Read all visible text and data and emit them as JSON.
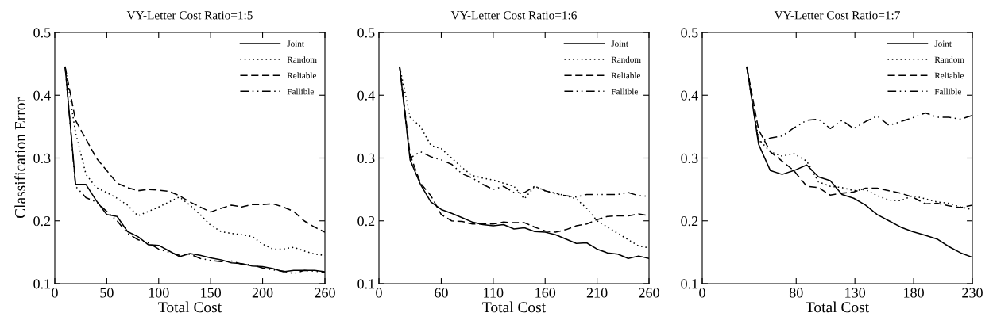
{
  "chart_data": [
    {
      "type": "line",
      "title": "VY-Letter Cost Ratio=1:5",
      "xlabel": "Total Cost",
      "ylabel": "Classification Error",
      "xlim": [
        0,
        260
      ],
      "xticks": [
        0,
        50,
        100,
        150,
        200,
        260
      ],
      "ylim": [
        0.1,
        0.5
      ],
      "yticks": [
        0.1,
        0.2,
        0.3,
        0.4,
        0.5
      ],
      "grid": false,
      "legend": "top right",
      "marker": "none",
      "x": [
        10,
        20,
        30,
        40,
        50,
        60,
        70,
        80,
        90,
        100,
        110,
        120,
        130,
        140,
        150,
        160,
        170,
        180,
        190,
        200,
        210,
        220,
        230,
        240,
        250,
        260
      ],
      "series": [
        {
          "name": "Joint",
          "color": "#000000",
          "line_style": "solid",
          "values": [
            0.445,
            0.258,
            0.258,
            0.232,
            0.21,
            0.207,
            0.183,
            0.175,
            0.162,
            0.161,
            0.152,
            0.143,
            0.148,
            0.145,
            0.141,
            0.138,
            0.133,
            0.132,
            0.128,
            0.127,
            0.124,
            0.119,
            0.121,
            0.121,
            0.121,
            0.119
          ]
        },
        {
          "name": "Random",
          "color": "#000000",
          "line_style": "dotted",
          "values": [
            0.445,
            0.34,
            0.274,
            0.253,
            0.245,
            0.236,
            0.225,
            0.208,
            0.215,
            0.222,
            0.23,
            0.238,
            0.225,
            0.21,
            0.193,
            0.183,
            0.18,
            0.178,
            0.175,
            0.163,
            0.155,
            0.155,
            0.158,
            0.152,
            0.147,
            0.145
          ]
        },
        {
          "name": "Reliable",
          "color": "#000000",
          "line_style": "dashed",
          "values": [
            0.445,
            0.36,
            0.33,
            0.3,
            0.28,
            0.26,
            0.253,
            0.248,
            0.25,
            0.249,
            0.247,
            0.24,
            0.23,
            0.222,
            0.214,
            0.22,
            0.225,
            0.222,
            0.226,
            0.226,
            0.227,
            0.222,
            0.215,
            0.2,
            0.19,
            0.182
          ]
        },
        {
          "name": "Fallible",
          "color": "#000000",
          "line_style": "dashdotdot",
          "values": [
            0.445,
            0.255,
            0.237,
            0.23,
            0.215,
            0.2,
            0.18,
            0.17,
            0.165,
            0.155,
            0.15,
            0.145,
            0.147,
            0.14,
            0.137,
            0.135,
            0.136,
            0.131,
            0.13,
            0.125,
            0.122,
            0.12,
            0.116,
            0.121,
            0.12,
            0.118
          ]
        }
      ]
    },
    {
      "type": "line",
      "title": "VY-Letter Cost Ratio=1:6",
      "xlabel": "Total Cost",
      "xlim": [
        0,
        260
      ],
      "xticks": [
        0,
        60,
        110,
        160,
        210,
        260
      ],
      "ylim": [
        0.1,
        0.5
      ],
      "yticks": [
        0.1,
        0.2,
        0.3,
        0.4,
        0.5
      ],
      "grid": false,
      "legend": "top right",
      "marker": "none",
      "x": [
        20,
        30,
        40,
        50,
        60,
        70,
        80,
        90,
        100,
        110,
        120,
        130,
        140,
        150,
        160,
        170,
        180,
        190,
        200,
        210,
        220,
        230,
        240,
        250,
        260
      ],
      "series": [
        {
          "name": "Joint",
          "color": "#000000",
          "line_style": "solid",
          "values": [
            0.445,
            0.297,
            0.258,
            0.23,
            0.218,
            0.212,
            0.205,
            0.198,
            0.194,
            0.192,
            0.194,
            0.187,
            0.189,
            0.183,
            0.182,
            0.178,
            0.171,
            0.164,
            0.165,
            0.155,
            0.149,
            0.147,
            0.14,
            0.144,
            0.14
          ]
        },
        {
          "name": "Random",
          "color": "#000000",
          "line_style": "dotted",
          "values": [
            0.445,
            0.365,
            0.35,
            0.32,
            0.315,
            0.3,
            0.285,
            0.272,
            0.268,
            0.265,
            0.26,
            0.255,
            0.235,
            0.255,
            0.248,
            0.244,
            0.24,
            0.235,
            0.22,
            0.2,
            0.19,
            0.18,
            0.17,
            0.16,
            0.157
          ]
        },
        {
          "name": "Reliable",
          "color": "#000000",
          "line_style": "dashed",
          "values": [
            0.445,
            0.305,
            0.26,
            0.24,
            0.21,
            0.2,
            0.199,
            0.195,
            0.195,
            0.195,
            0.198,
            0.197,
            0.197,
            0.19,
            0.184,
            0.182,
            0.186,
            0.192,
            0.195,
            0.202,
            0.207,
            0.208,
            0.208,
            0.211,
            0.208
          ]
        },
        {
          "name": "Fallible",
          "color": "#000000",
          "line_style": "dashdotdot",
          "values": [
            0.445,
            0.3,
            0.31,
            0.302,
            0.297,
            0.29,
            0.275,
            0.268,
            0.258,
            0.25,
            0.255,
            0.245,
            0.245,
            0.255,
            0.248,
            0.243,
            0.24,
            0.238,
            0.242,
            0.242,
            0.242,
            0.242,
            0.245,
            0.24,
            0.239
          ]
        }
      ]
    },
    {
      "type": "line",
      "title": "VY-Letter Cost Ratio=1:7",
      "xlabel": "Total Cost",
      "xlim": [
        0,
        230
      ],
      "xticks": [
        0,
        80,
        130,
        180,
        230
      ],
      "ylim": [
        0.1,
        0.5
      ],
      "yticks": [
        0.1,
        0.2,
        0.3,
        0.4,
        0.5
      ],
      "grid": false,
      "legend": "top right",
      "marker": "none",
      "x": [
        38,
        48,
        58,
        68,
        78,
        89,
        99,
        109,
        119,
        129,
        139,
        149,
        159,
        169,
        179,
        190,
        200,
        210,
        220,
        230
      ],
      "series": [
        {
          "name": "Joint",
          "color": "#000000",
          "line_style": "solid",
          "values": [
            0.445,
            0.322,
            0.28,
            0.274,
            0.28,
            0.289,
            0.27,
            0.264,
            0.242,
            0.236,
            0.225,
            0.21,
            0.2,
            0.19,
            0.183,
            0.177,
            0.171,
            0.159,
            0.149,
            0.142
          ]
        },
        {
          "name": "Random",
          "color": "#000000",
          "line_style": "dotted",
          "values": [
            0.445,
            0.33,
            0.31,
            0.303,
            0.307,
            0.295,
            0.262,
            0.255,
            0.253,
            0.248,
            0.25,
            0.24,
            0.233,
            0.232,
            0.24,
            0.235,
            0.23,
            0.228,
            0.222,
            0.218
          ]
        },
        {
          "name": "Reliable",
          "color": "#000000",
          "line_style": "dashed",
          "values": [
            0.445,
            0.345,
            0.31,
            0.295,
            0.28,
            0.255,
            0.253,
            0.241,
            0.244,
            0.246,
            0.252,
            0.252,
            0.248,
            0.244,
            0.238,
            0.227,
            0.228,
            0.224,
            0.221,
            0.225
          ]
        },
        {
          "name": "Fallible",
          "color": "#000000",
          "line_style": "dashdotdot",
          "values": [
            0.445,
            0.325,
            0.332,
            0.335,
            0.348,
            0.36,
            0.362,
            0.347,
            0.36,
            0.347,
            0.358,
            0.367,
            0.352,
            0.358,
            0.364,
            0.372,
            0.365,
            0.365,
            0.362,
            0.368
          ]
        }
      ]
    }
  ]
}
